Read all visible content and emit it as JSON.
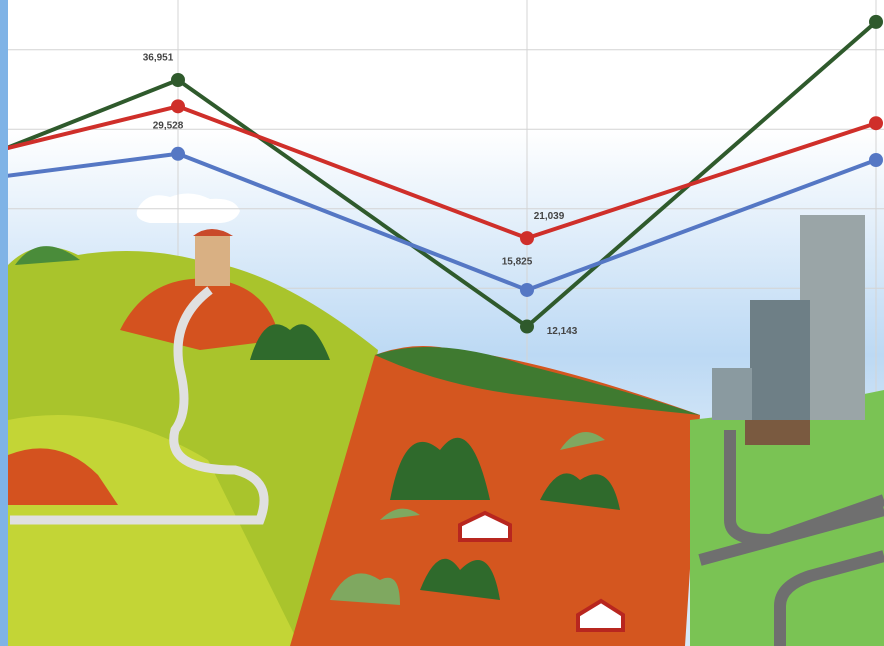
{
  "chart_data": {
    "type": "line",
    "categories": [
      null,
      null,
      null,
      null
    ],
    "series": [
      {
        "name": null,
        "color": "#2f5a2c",
        "values": [
          23000,
          36951,
          12143,
          42800
        ],
        "value_labels": [
          null,
          "36,951",
          "12,143",
          null
        ]
      },
      {
        "name": null,
        "color": "#cf2f2a",
        "values": [
          25700,
          34300,
          21039,
          32600
        ],
        "value_labels": [
          null,
          null,
          "21,039",
          null
        ]
      },
      {
        "name": null,
        "color": "#5577c4",
        "values": [
          25000,
          29528,
          15825,
          28900
        ],
        "value_labels": [
          null,
          "29,528",
          "15,825",
          null
        ]
      }
    ],
    "ylim": [
      -20000,
      45000
    ],
    "yticks": [
      40000,
      32000,
      24000,
      16000
    ],
    "grid": true
  }
}
